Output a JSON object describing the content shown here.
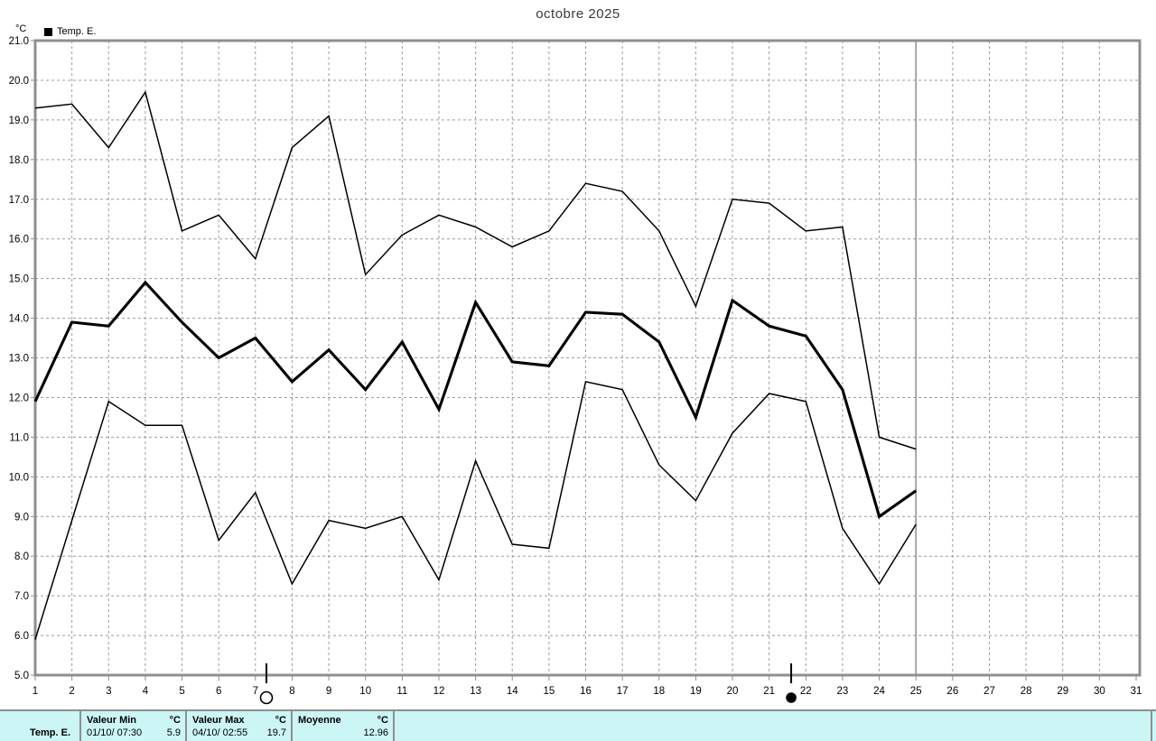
{
  "title": "octobre 2025",
  "y_axis_unit_label": "°C",
  "legend": {
    "label": "Temp. E."
  },
  "colors": {
    "line": "#000000",
    "grid": "#9c9c9c",
    "frame": "#8f8f8f",
    "current_day_line": "#9c9c9c",
    "table_background": "#ccf5f5",
    "table_border": "#8f8f8f"
  },
  "chart_data": {
    "type": "line",
    "title": "octobre 2025",
    "xlabel": "",
    "ylabel": "°C",
    "grid": true,
    "legend_position": "top-left",
    "x_axis": {
      "min": 1,
      "max": 31,
      "ticks": [
        1,
        2,
        3,
        4,
        5,
        6,
        7,
        8,
        9,
        10,
        11,
        12,
        13,
        14,
        15,
        16,
        17,
        18,
        19,
        20,
        21,
        22,
        23,
        24,
        25,
        26,
        27,
        28,
        29,
        30,
        31
      ]
    },
    "y_axis": {
      "min": 5.0,
      "max": 21.0,
      "ticks": [
        5,
        6,
        7,
        8,
        9,
        10,
        11,
        12,
        13,
        14,
        15,
        16,
        17,
        18,
        19,
        20,
        21
      ],
      "tick_format": "one-decimal"
    },
    "x": [
      1,
      2,
      3,
      4,
      5,
      6,
      7,
      8,
      9,
      10,
      11,
      12,
      13,
      14,
      15,
      16,
      17,
      18,
      19,
      20,
      21,
      22,
      23,
      24,
      25
    ],
    "series": [
      {
        "name": "temp-max",
        "emphasis": false,
        "values": [
          19.3,
          19.4,
          18.3,
          19.7,
          16.2,
          16.6,
          15.5,
          18.3,
          19.1,
          15.1,
          16.1,
          16.6,
          16.3,
          15.8,
          16.2,
          17.4,
          17.2,
          16.2,
          14.3,
          17.0,
          16.9,
          16.2,
          16.3,
          11.0,
          10.7
        ]
      },
      {
        "name": "temp-mean",
        "emphasis": true,
        "values": [
          11.9,
          13.9,
          13.8,
          14.9,
          13.9,
          13.0,
          13.5,
          12.4,
          13.2,
          12.2,
          13.4,
          11.7,
          14.4,
          12.9,
          12.8,
          14.15,
          14.1,
          13.4,
          11.5,
          14.45,
          13.8,
          13.55,
          12.2,
          9.0,
          9.65
        ]
      },
      {
        "name": "temp-min",
        "emphasis": false,
        "values": [
          5.9,
          8.9,
          11.9,
          11.3,
          11.3,
          8.4,
          9.6,
          7.3,
          8.9,
          8.7,
          9.0,
          7.4,
          10.4,
          8.3,
          8.2,
          12.4,
          12.2,
          10.3,
          9.4,
          11.1,
          12.1,
          11.9,
          8.7,
          7.3,
          8.8
        ]
      }
    ],
    "current_day_line": 25,
    "moon_markers": [
      {
        "type": "full-moon",
        "day": 7.3
      },
      {
        "type": "new-moon",
        "day": 21.6
      }
    ]
  },
  "summary_table": {
    "row_label": "Temp. E.",
    "columns": [
      {
        "header": "Valeur Min",
        "unit": "°C",
        "timestamp": "01/10/ 07:30",
        "value": "5.9"
      },
      {
        "header": "Valeur Max",
        "unit": "°C",
        "timestamp": "04/10/ 02:55",
        "value": "19.7"
      },
      {
        "header": "Moyenne",
        "unit": "°C",
        "timestamp": "",
        "value": "12.96"
      }
    ]
  }
}
